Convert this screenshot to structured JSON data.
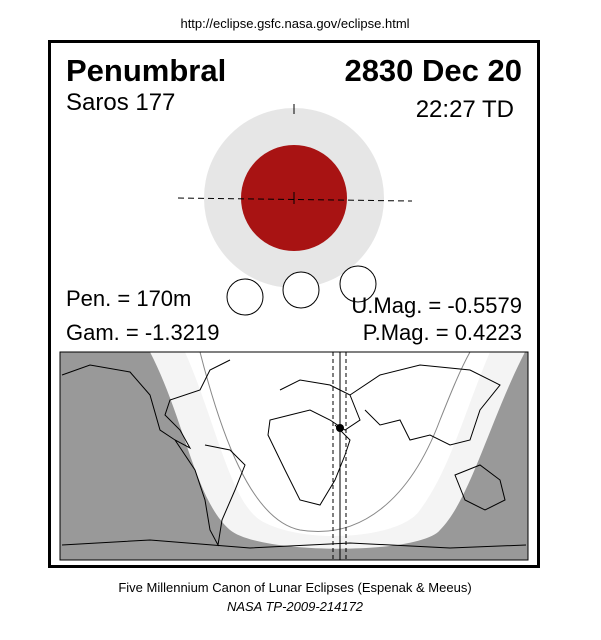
{
  "url": "http://eclipse.gsfc.nasa.gov/eclipse.html",
  "header": {
    "type": "Penumbral",
    "date": "2830 Dec 20",
    "saros": "Saros 177",
    "time": "22:27 TD"
  },
  "parameters": {
    "pen": "Pen. = 170m",
    "gam": "Gam. = -1.3219",
    "umag": "U.Mag. = -0.5579",
    "pmag": "P.Mag. = 0.4223"
  },
  "footer": {
    "title": "Five Millennium Canon of Lunar Eclipses (Espenak & Meeus)",
    "reference": "NASA TP-2009-214172"
  }
}
